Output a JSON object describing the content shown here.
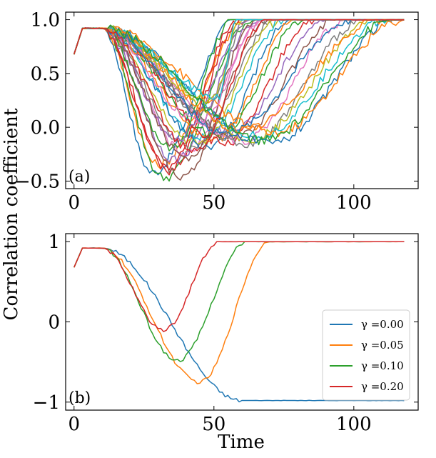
{
  "figure": {
    "ylabel": "Correlation coefficient",
    "xlabel": "Time"
  },
  "chart_data": [
    {
      "type": "line",
      "panel_label": "(a)",
      "xlim": [
        -3,
        123
      ],
      "ylim": [
        -0.57,
        1.07
      ],
      "xticks": [
        0,
        50,
        100
      ],
      "yticks": [
        -0.5,
        0.0,
        0.5,
        1.0
      ],
      "ytick_labels": [
        "−0.5",
        "0.0",
        "0.5",
        "1.0"
      ],
      "series_count": 34,
      "colors": [
        "#1f77b4",
        "#ff7f0e",
        "#2ca02c",
        "#d62728",
        "#9467bd",
        "#8c564b",
        "#e377c2",
        "#7f7f7f",
        "#bcbd22",
        "#17becf"
      ],
      "series_params": [
        {
          "tmin": 28,
          "ymin": -0.42,
          "rise_end": 58
        },
        {
          "tmin": 30,
          "ymin": -0.35,
          "rise_end": 62
        },
        {
          "tmin": 32,
          "ymin": -0.47,
          "rise_end": 64
        },
        {
          "tmin": 34,
          "ymin": -0.4,
          "rise_end": 60
        },
        {
          "tmin": 36,
          "ymin": -0.3,
          "rise_end": 66
        },
        {
          "tmin": 38,
          "ymin": -0.45,
          "rise_end": 70
        },
        {
          "tmin": 40,
          "ymin": -0.25,
          "rise_end": 68
        },
        {
          "tmin": 42,
          "ymin": -0.2,
          "rise_end": 72
        },
        {
          "tmin": 44,
          "ymin": -0.15,
          "rise_end": 74
        },
        {
          "tmin": 46,
          "ymin": -0.1,
          "rise_end": 76
        },
        {
          "tmin": 48,
          "ymin": -0.18,
          "rise_end": 78
        },
        {
          "tmin": 50,
          "ymin": -0.12,
          "rise_end": 80
        },
        {
          "tmin": 52,
          "ymin": -0.08,
          "rise_end": 82
        },
        {
          "tmin": 54,
          "ymin": -0.15,
          "rise_end": 86
        },
        {
          "tmin": 56,
          "ymin": -0.05,
          "rise_end": 90
        },
        {
          "tmin": 58,
          "ymin": -0.1,
          "rise_end": 94
        },
        {
          "tmin": 60,
          "ymin": -0.12,
          "rise_end": 98
        },
        {
          "tmin": 62,
          "ymin": -0.15,
          "rise_end": 104
        },
        {
          "tmin": 64,
          "ymin": -0.1,
          "rise_end": 108
        },
        {
          "tmin": 66,
          "ymin": -0.08,
          "rise_end": 112
        },
        {
          "tmin": 70,
          "ymin": -0.15,
          "rise_end": 116
        },
        {
          "tmin": 72,
          "ymin": -0.05,
          "rise_end": 118
        },
        {
          "tmin": 35,
          "ymin": -0.2,
          "rise_end": 57
        },
        {
          "tmin": 33,
          "ymin": -0.38,
          "rise_end": 59
        },
        {
          "tmin": 37,
          "ymin": -0.1,
          "rise_end": 63
        },
        {
          "tmin": 41,
          "ymin": -0.3,
          "rise_end": 65
        },
        {
          "tmin": 45,
          "ymin": 0.05,
          "rise_end": 67
        },
        {
          "tmin": 47,
          "ymin": 0.15,
          "rise_end": 62
        },
        {
          "tmin": 49,
          "ymin": 0.25,
          "rise_end": 60
        },
        {
          "tmin": 52,
          "ymin": 0.3,
          "rise_end": 58
        },
        {
          "tmin": 55,
          "ymin": -0.05,
          "rise_end": 100
        },
        {
          "tmin": 60,
          "ymin": -0.02,
          "rise_end": 110
        },
        {
          "tmin": 68,
          "ymin": -0.12,
          "rise_end": 114
        },
        {
          "tmin": 43,
          "ymin": -0.22,
          "rise_end": 69
        }
      ]
    },
    {
      "type": "line",
      "panel_label": "(b)",
      "xlim": [
        -3,
        123
      ],
      "ylim": [
        -1.1,
        1.1
      ],
      "xticks": [
        0,
        50,
        100
      ],
      "yticks": [
        -1,
        0,
        1
      ],
      "ytick_labels": [
        "−1",
        "0",
        "1"
      ],
      "legend": "lower-right",
      "series": [
        {
          "name": "γ =0.00",
          "color": "#1f77b4",
          "tmin": 60,
          "ymin": -0.98,
          "rise_end": 60,
          "flat_min": true
        },
        {
          "name": "γ =0.05",
          "color": "#ff7f0e",
          "tmin": 45,
          "ymin": -0.75,
          "rise_end": 70,
          "flat_min": false
        },
        {
          "name": "γ =0.10",
          "color": "#2ca02c",
          "tmin": 37,
          "ymin": -0.48,
          "rise_end": 62,
          "flat_min": false
        },
        {
          "name": "γ =0.20",
          "color": "#d62728",
          "tmin": 32,
          "ymin": -0.1,
          "rise_end": 52,
          "flat_min": false
        }
      ]
    }
  ]
}
